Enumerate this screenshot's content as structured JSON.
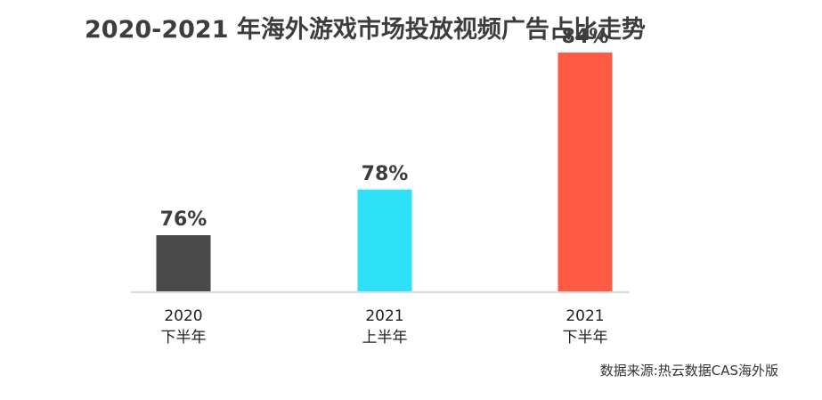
{
  "chart_data": {
    "type": "bar",
    "title": "2020-2021 年海外游戏市场投放视频广告占比走势",
    "categories": [
      {
        "year": "2020",
        "period": "下半年"
      },
      {
        "year": "2021",
        "period": "上半年"
      },
      {
        "year": "2021",
        "period": "下半年"
      }
    ],
    "values": [
      76,
      78,
      84
    ],
    "value_labels": [
      "76%",
      "78%",
      "84%"
    ],
    "colors": [
      "#4a4a4a",
      "#2ee0f5",
      "#ff5a44"
    ],
    "grid": false,
    "legend": "none"
  },
  "source": "数据来源:热云数据CAS海外版"
}
